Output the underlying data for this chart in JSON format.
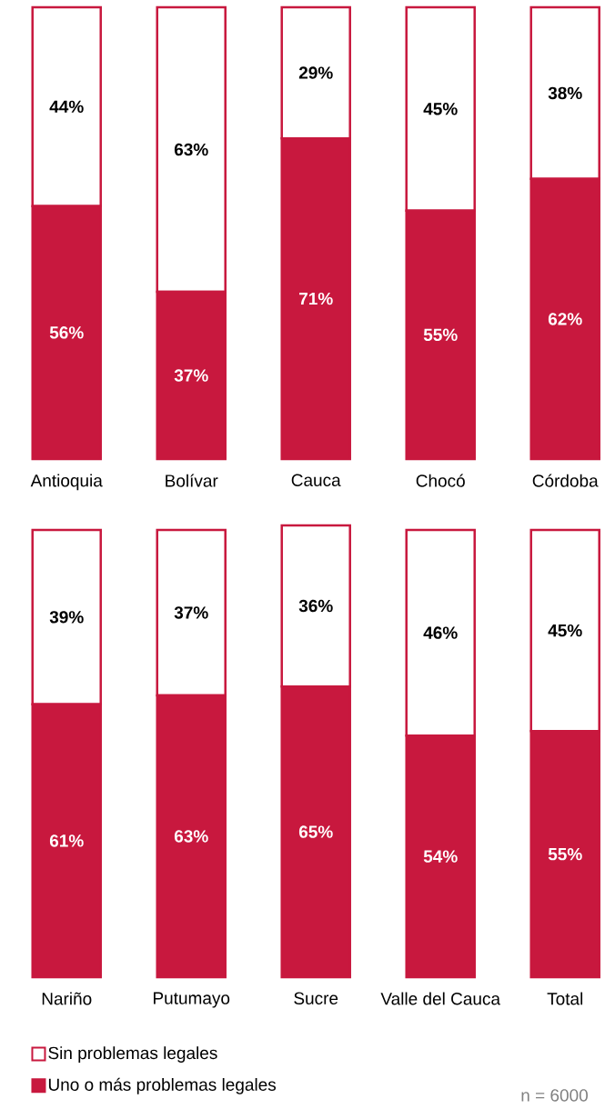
{
  "chart_data": [
    {
      "type": "bar",
      "stacked": true,
      "categories": [
        "Antioquia",
        "Bolívar",
        "Cauca",
        "Chocó",
        "Córdoba"
      ],
      "series": [
        {
          "color": "#c8183e",
          "values": [
            56,
            37,
            71,
            55,
            62
          ],
          "value_labels": [
            "56%",
            "37%",
            "71%",
            "55%",
            "62%"
          ]
        },
        {
          "color": "#ffffff",
          "values": [
            44,
            63,
            29,
            45,
            38
          ],
          "value_labels": [
            "44%",
            "63%",
            "29%",
            "45%",
            "38%"
          ]
        }
      ]
    },
    {
      "type": "bar",
      "stacked": true,
      "legend": "bottom left",
      "categories": [
        "Nariño",
        "Putumayo",
        "Sucre",
        "Valle del Cauca",
        "Total"
      ],
      "series": [
        {
          "name": "Uno o más problemas legales",
          "color": "#c8183e",
          "values": [
            61,
            63,
            65,
            54,
            55
          ],
          "value_labels": [
            "61%",
            "63%",
            "65%",
            "54%",
            "55%"
          ]
        },
        {
          "name": "Sin problemas legales",
          "color": "#ffffff",
          "values": [
            39,
            37,
            36,
            46,
            45
          ],
          "value_labels": [
            "39%",
            "37%",
            "36%",
            "46%",
            "45%"
          ]
        }
      ],
      "annotations": [
        "n = 6000"
      ]
    }
  ]
}
